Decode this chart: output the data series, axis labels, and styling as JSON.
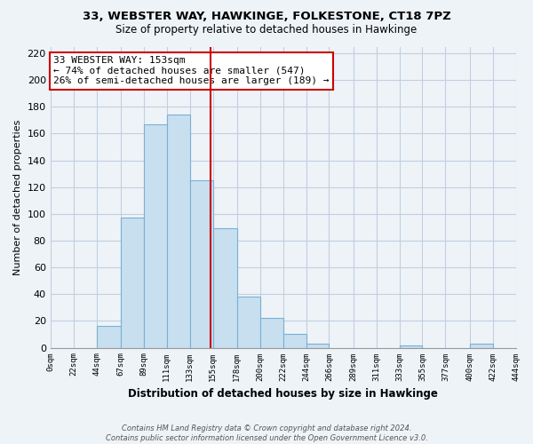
{
  "title1": "33, WEBSTER WAY, HAWKINGE, FOLKESTONE, CT18 7PZ",
  "title2": "Size of property relative to detached houses in Hawkinge",
  "xlabel": "Distribution of detached houses by size in Hawkinge",
  "ylabel": "Number of detached properties",
  "bar_color": "#c8dff0",
  "bar_edge_color": "#7ab0d4",
  "bins": [
    0,
    22,
    44,
    67,
    89,
    111,
    133,
    155,
    178,
    200,
    222,
    244,
    266,
    289,
    311,
    333,
    355,
    377,
    400,
    422,
    444
  ],
  "bin_labels": [
    "0sqm",
    "22sqm",
    "44sqm",
    "67sqm",
    "89sqm",
    "111sqm",
    "133sqm",
    "155sqm",
    "178sqm",
    "200sqm",
    "222sqm",
    "244sqm",
    "266sqm",
    "289sqm",
    "311sqm",
    "333sqm",
    "355sqm",
    "377sqm",
    "400sqm",
    "422sqm",
    "444sqm"
  ],
  "counts": [
    0,
    0,
    16,
    97,
    167,
    174,
    125,
    89,
    38,
    22,
    10,
    3,
    0,
    0,
    0,
    2,
    0,
    0,
    3,
    0
  ],
  "property_size": 153,
  "vline_color": "#cc0000",
  "annot_line1": "33 WEBSTER WAY: 153sqm",
  "annot_line2": "← 74% of detached houses are smaller (547)",
  "annot_line3": "26% of semi-detached houses are larger (189) →",
  "annotation_box_color": "white",
  "annotation_box_edge": "#cc0000",
  "ylim": [
    0,
    225
  ],
  "yticks": [
    0,
    20,
    40,
    60,
    80,
    100,
    120,
    140,
    160,
    180,
    200,
    220
  ],
  "footnote": "Contains HM Land Registry data © Crown copyright and database right 2024.\nContains public sector information licensed under the Open Government Licence v3.0.",
  "background_color": "#eef3f8",
  "plot_bg_color": "#eef3f8",
  "grid_color": "#c0cfe0"
}
